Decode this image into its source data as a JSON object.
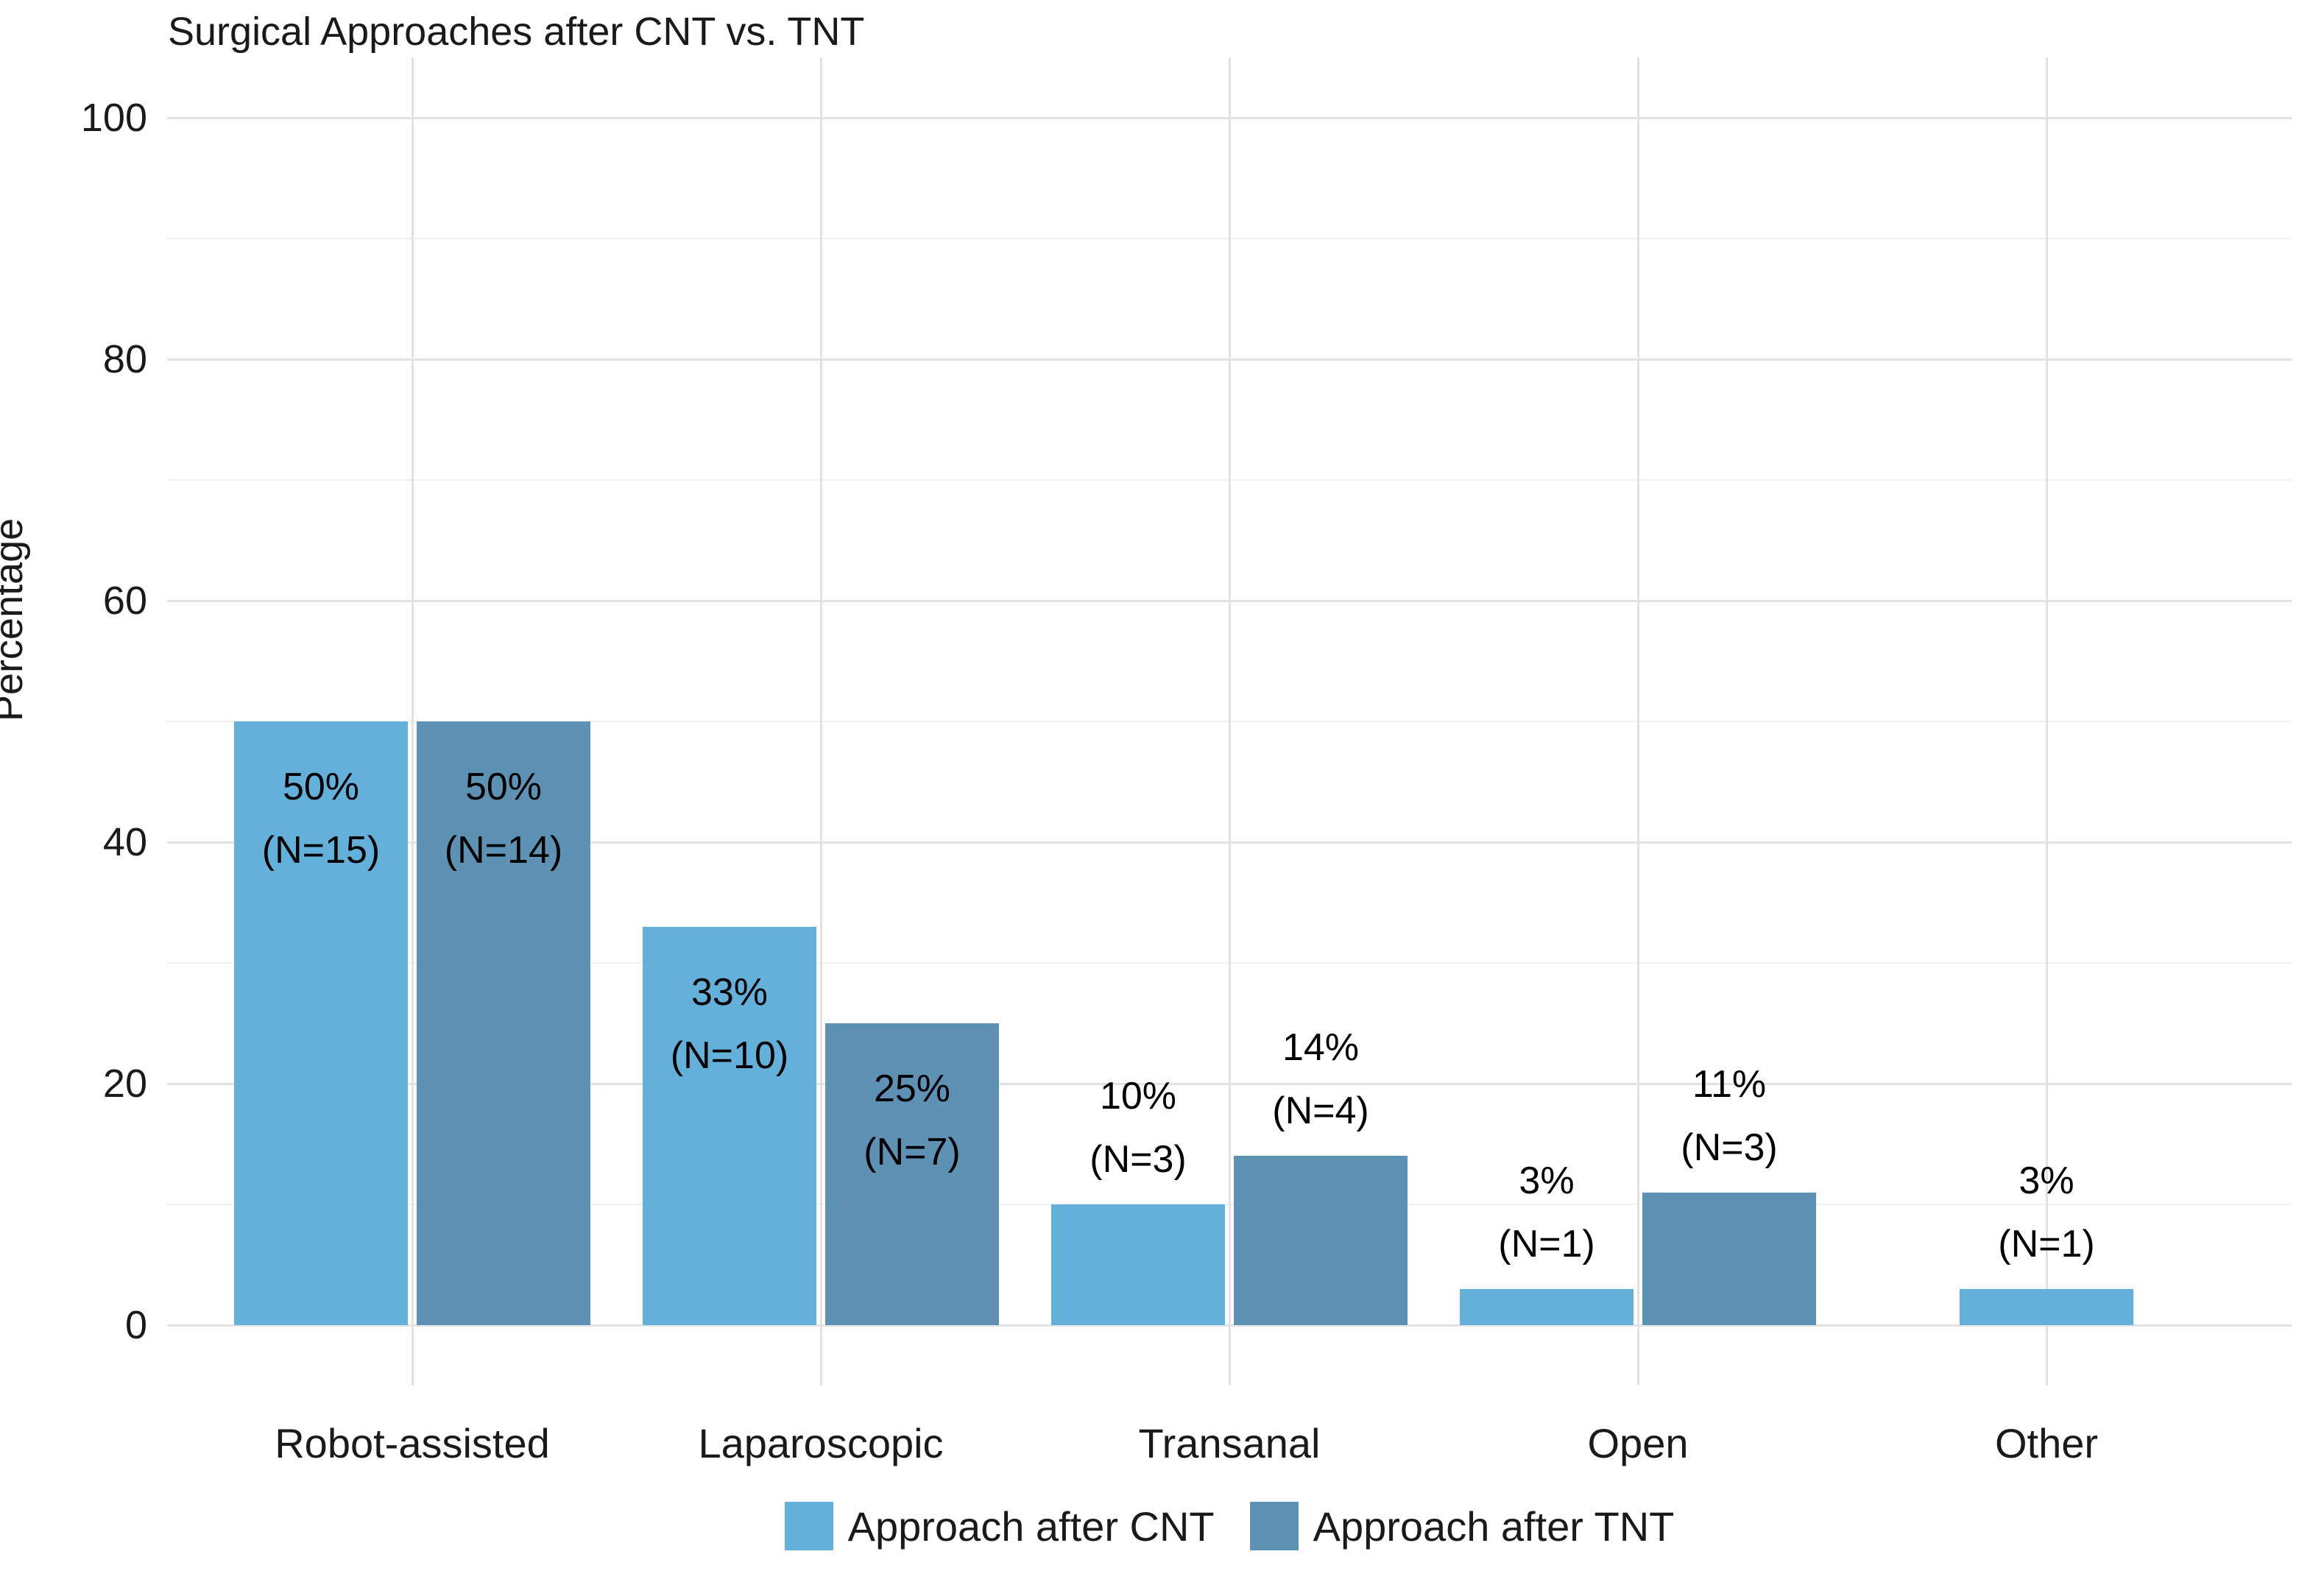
{
  "chart_data": {
    "type": "bar",
    "title": "Surgical Approaches after CNT vs. TNT",
    "ylabel": "Percentage",
    "xlabel": "",
    "ylim": [
      0,
      100
    ],
    "yticks": [
      0,
      20,
      40,
      60,
      80,
      100
    ],
    "y_minor_gridlines": [
      10,
      30,
      50,
      70,
      90
    ],
    "grid": "on",
    "legend_position": "bottom",
    "background_color": "#ffffff",
    "major_grid_color": "#e2e2e2",
    "minor_grid_color": "#f0f0f0",
    "categories": [
      "Robot-assisted",
      "Laparoscopic",
      "Transanal",
      "Open",
      "Other"
    ],
    "series": [
      {
        "name": "Approach after CNT",
        "color": "#63B0DB",
        "values": [
          50,
          33,
          10,
          3,
          3
        ],
        "counts": [
          15,
          10,
          3,
          1,
          1
        ],
        "bar_labels": [
          "50% (N=15)",
          "33% (N=10)",
          "10% (N=3)",
          "3% (N=1)",
          "3% (N=1)"
        ]
      },
      {
        "name": "Approach after TNT",
        "color": "#5E92B4",
        "values": [
          50,
          25,
          14,
          11,
          null
        ],
        "counts": [
          14,
          7,
          4,
          3,
          null
        ],
        "bar_labels": [
          "50% (N=14)",
          "25% (N=7)",
          "14% (N=4)",
          "11% (N=3)",
          null
        ]
      }
    ],
    "label_inside_threshold_pct": 20
  }
}
